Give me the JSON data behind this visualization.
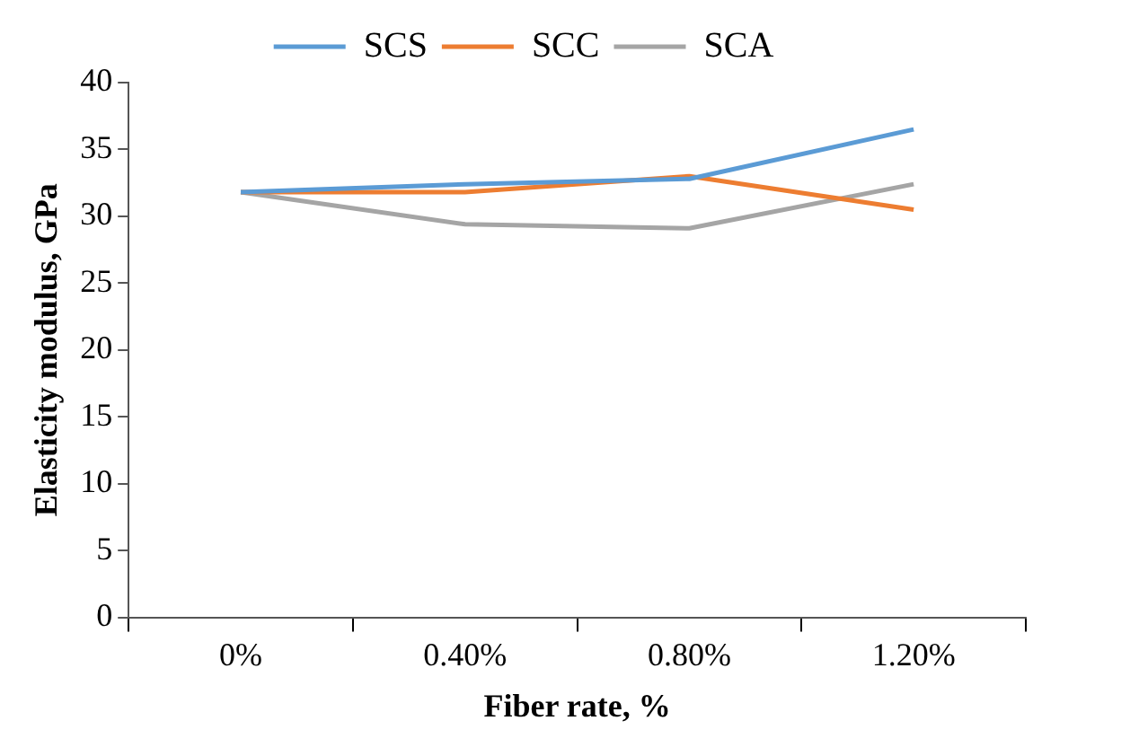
{
  "chart_data": {
    "type": "line",
    "xlabel": "Fiber rate, %",
    "ylabel": "Elasticity modulus, GPa",
    "categories": [
      "0%",
      "0.40%",
      "0.80%",
      "1.20%"
    ],
    "series": [
      {
        "name": "SCS",
        "color": "#5b9bd5",
        "values": [
          31.8,
          32.4,
          32.8,
          36.5
        ]
      },
      {
        "name": "SCC",
        "color": "#ed7d31",
        "values": [
          31.8,
          31.8,
          33.0,
          30.5
        ]
      },
      {
        "name": "SCA",
        "color": "#a5a5a5",
        "values": [
          31.8,
          29.4,
          29.1,
          32.4
        ]
      }
    ],
    "ylim": [
      0,
      40
    ],
    "yticks": [
      0,
      5,
      10,
      15,
      20,
      25,
      30,
      35,
      40
    ],
    "grid": false,
    "legend": "top",
    "marker": "none",
    "line_style": "solid"
  }
}
